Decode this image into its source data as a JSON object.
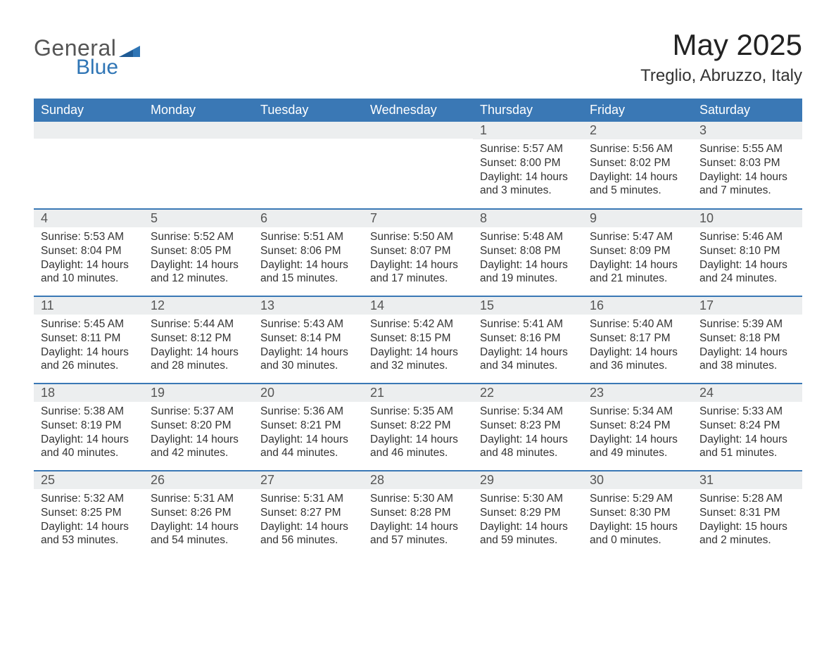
{
  "logo": {
    "text1": "General",
    "text2": "Blue"
  },
  "title": "May 2025",
  "location": "Treglio, Abruzzo, Italy",
  "colors": {
    "header_bg": "#3a78b5",
    "header_text": "#ffffff",
    "daynum_bg": "#eceeef",
    "border": "#3a78b5",
    "body_text": "#333333",
    "logo_gray": "#555555",
    "logo_blue": "#2f75b5"
  },
  "fonts": {
    "title_size_pt": 32,
    "location_size_pt": 18,
    "header_size_pt": 14,
    "daynum_size_pt": 14,
    "body_size_pt": 12
  },
  "weekdays": [
    "Sunday",
    "Monday",
    "Tuesday",
    "Wednesday",
    "Thursday",
    "Friday",
    "Saturday"
  ],
  "weeks": [
    [
      null,
      null,
      null,
      null,
      {
        "day": "1",
        "sunrise": "Sunrise: 5:57 AM",
        "sunset": "Sunset: 8:00 PM",
        "daylight": "Daylight: 14 hours and 3 minutes."
      },
      {
        "day": "2",
        "sunrise": "Sunrise: 5:56 AM",
        "sunset": "Sunset: 8:02 PM",
        "daylight": "Daylight: 14 hours and 5 minutes."
      },
      {
        "day": "3",
        "sunrise": "Sunrise: 5:55 AM",
        "sunset": "Sunset: 8:03 PM",
        "daylight": "Daylight: 14 hours and 7 minutes."
      }
    ],
    [
      {
        "day": "4",
        "sunrise": "Sunrise: 5:53 AM",
        "sunset": "Sunset: 8:04 PM",
        "daylight": "Daylight: 14 hours and 10 minutes."
      },
      {
        "day": "5",
        "sunrise": "Sunrise: 5:52 AM",
        "sunset": "Sunset: 8:05 PM",
        "daylight": "Daylight: 14 hours and 12 minutes."
      },
      {
        "day": "6",
        "sunrise": "Sunrise: 5:51 AM",
        "sunset": "Sunset: 8:06 PM",
        "daylight": "Daylight: 14 hours and 15 minutes."
      },
      {
        "day": "7",
        "sunrise": "Sunrise: 5:50 AM",
        "sunset": "Sunset: 8:07 PM",
        "daylight": "Daylight: 14 hours and 17 minutes."
      },
      {
        "day": "8",
        "sunrise": "Sunrise: 5:48 AM",
        "sunset": "Sunset: 8:08 PM",
        "daylight": "Daylight: 14 hours and 19 minutes."
      },
      {
        "day": "9",
        "sunrise": "Sunrise: 5:47 AM",
        "sunset": "Sunset: 8:09 PM",
        "daylight": "Daylight: 14 hours and 21 minutes."
      },
      {
        "day": "10",
        "sunrise": "Sunrise: 5:46 AM",
        "sunset": "Sunset: 8:10 PM",
        "daylight": "Daylight: 14 hours and 24 minutes."
      }
    ],
    [
      {
        "day": "11",
        "sunrise": "Sunrise: 5:45 AM",
        "sunset": "Sunset: 8:11 PM",
        "daylight": "Daylight: 14 hours and 26 minutes."
      },
      {
        "day": "12",
        "sunrise": "Sunrise: 5:44 AM",
        "sunset": "Sunset: 8:12 PM",
        "daylight": "Daylight: 14 hours and 28 minutes."
      },
      {
        "day": "13",
        "sunrise": "Sunrise: 5:43 AM",
        "sunset": "Sunset: 8:14 PM",
        "daylight": "Daylight: 14 hours and 30 minutes."
      },
      {
        "day": "14",
        "sunrise": "Sunrise: 5:42 AM",
        "sunset": "Sunset: 8:15 PM",
        "daylight": "Daylight: 14 hours and 32 minutes."
      },
      {
        "day": "15",
        "sunrise": "Sunrise: 5:41 AM",
        "sunset": "Sunset: 8:16 PM",
        "daylight": "Daylight: 14 hours and 34 minutes."
      },
      {
        "day": "16",
        "sunrise": "Sunrise: 5:40 AM",
        "sunset": "Sunset: 8:17 PM",
        "daylight": "Daylight: 14 hours and 36 minutes."
      },
      {
        "day": "17",
        "sunrise": "Sunrise: 5:39 AM",
        "sunset": "Sunset: 8:18 PM",
        "daylight": "Daylight: 14 hours and 38 minutes."
      }
    ],
    [
      {
        "day": "18",
        "sunrise": "Sunrise: 5:38 AM",
        "sunset": "Sunset: 8:19 PM",
        "daylight": "Daylight: 14 hours and 40 minutes."
      },
      {
        "day": "19",
        "sunrise": "Sunrise: 5:37 AM",
        "sunset": "Sunset: 8:20 PM",
        "daylight": "Daylight: 14 hours and 42 minutes."
      },
      {
        "day": "20",
        "sunrise": "Sunrise: 5:36 AM",
        "sunset": "Sunset: 8:21 PM",
        "daylight": "Daylight: 14 hours and 44 minutes."
      },
      {
        "day": "21",
        "sunrise": "Sunrise: 5:35 AM",
        "sunset": "Sunset: 8:22 PM",
        "daylight": "Daylight: 14 hours and 46 minutes."
      },
      {
        "day": "22",
        "sunrise": "Sunrise: 5:34 AM",
        "sunset": "Sunset: 8:23 PM",
        "daylight": "Daylight: 14 hours and 48 minutes."
      },
      {
        "day": "23",
        "sunrise": "Sunrise: 5:34 AM",
        "sunset": "Sunset: 8:24 PM",
        "daylight": "Daylight: 14 hours and 49 minutes."
      },
      {
        "day": "24",
        "sunrise": "Sunrise: 5:33 AM",
        "sunset": "Sunset: 8:24 PM",
        "daylight": "Daylight: 14 hours and 51 minutes."
      }
    ],
    [
      {
        "day": "25",
        "sunrise": "Sunrise: 5:32 AM",
        "sunset": "Sunset: 8:25 PM",
        "daylight": "Daylight: 14 hours and 53 minutes."
      },
      {
        "day": "26",
        "sunrise": "Sunrise: 5:31 AM",
        "sunset": "Sunset: 8:26 PM",
        "daylight": "Daylight: 14 hours and 54 minutes."
      },
      {
        "day": "27",
        "sunrise": "Sunrise: 5:31 AM",
        "sunset": "Sunset: 8:27 PM",
        "daylight": "Daylight: 14 hours and 56 minutes."
      },
      {
        "day": "28",
        "sunrise": "Sunrise: 5:30 AM",
        "sunset": "Sunset: 8:28 PM",
        "daylight": "Daylight: 14 hours and 57 minutes."
      },
      {
        "day": "29",
        "sunrise": "Sunrise: 5:30 AM",
        "sunset": "Sunset: 8:29 PM",
        "daylight": "Daylight: 14 hours and 59 minutes."
      },
      {
        "day": "30",
        "sunrise": "Sunrise: 5:29 AM",
        "sunset": "Sunset: 8:30 PM",
        "daylight": "Daylight: 15 hours and 0 minutes."
      },
      {
        "day": "31",
        "sunrise": "Sunrise: 5:28 AM",
        "sunset": "Sunset: 8:31 PM",
        "daylight": "Daylight: 15 hours and 2 minutes."
      }
    ]
  ]
}
